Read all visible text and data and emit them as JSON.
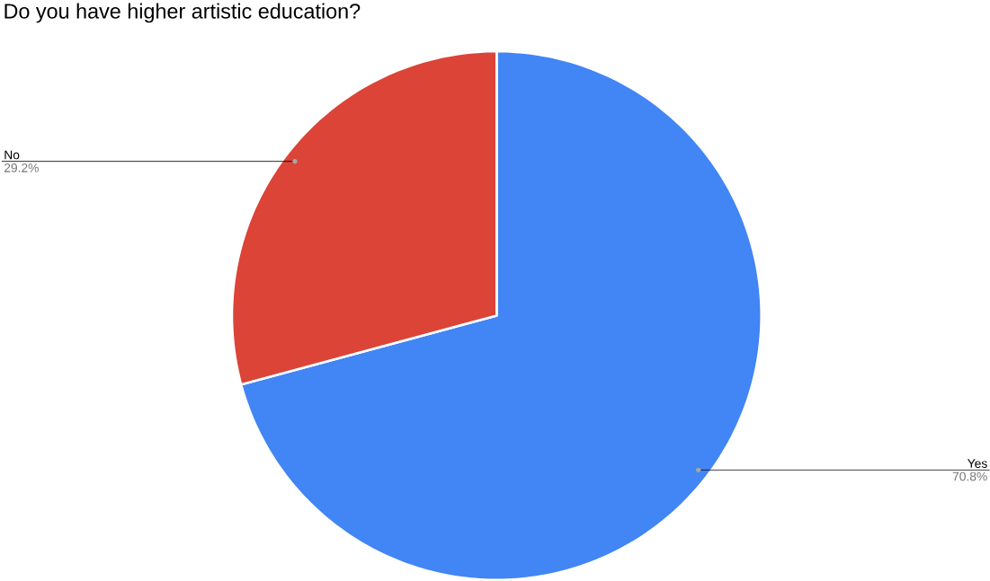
{
  "chart_data": {
    "type": "pie",
    "title": "Do you have higher artistic education?",
    "categories": [
      "Yes",
      "No"
    ],
    "values": [
      70.8,
      29.2
    ],
    "value_labels": [
      "70.8%",
      "29.2%"
    ],
    "colors": [
      "#4285f4",
      "#db4437"
    ]
  }
}
